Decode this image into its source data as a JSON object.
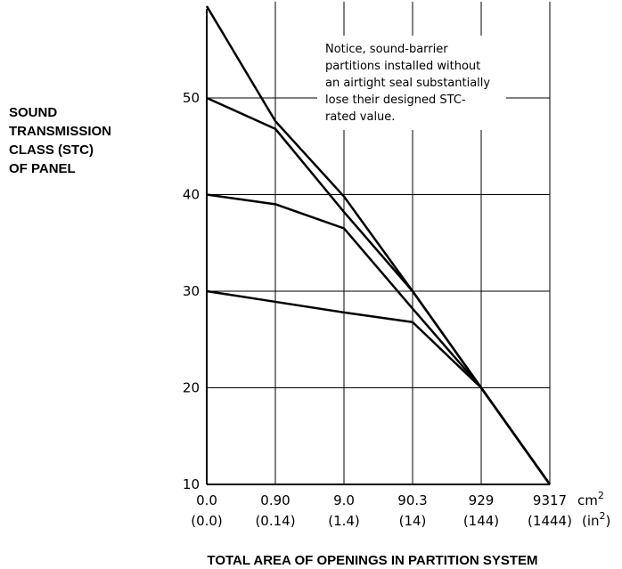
{
  "chart_data": {
    "type": "line",
    "ylabel_lines": [
      "SOUND",
      "TRANSMISSION",
      "CLASS (STC)",
      "OF PANEL"
    ],
    "xlabel": "TOTAL AREA OF OPENINGS IN PARTITION SYSTEM",
    "x_categories": [
      {
        "cm2": "0.0",
        "in2": "(0.0)"
      },
      {
        "cm2": "0.90",
        "in2": "(0.14)"
      },
      {
        "cm2": "9.0",
        "in2": "(1.4)"
      },
      {
        "cm2": "90.3",
        "in2": "(14)"
      },
      {
        "cm2": "929",
        "in2": "(144)"
      },
      {
        "cm2": "9317",
        "in2": "(1444)"
      }
    ],
    "x_unit_cm": "cm",
    "x_unit_cm_sup": "2",
    "x_unit_in": "(in",
    "x_unit_in_sup": "2",
    "x_unit_in_close": ")",
    "y_ticks": [
      10,
      20,
      30,
      40,
      50
    ],
    "ylim": [
      10,
      59.5
    ],
    "grid": true,
    "series": [
      {
        "x": [
          0,
          1,
          2,
          3,
          4,
          5
        ],
        "y": [
          59.5,
          47.6,
          39.8,
          30,
          20,
          10
        ]
      },
      {
        "x": [
          0,
          1,
          2,
          3,
          4,
          5
        ],
        "y": [
          50,
          46.8,
          38.2,
          30,
          20,
          10
        ]
      },
      {
        "x": [
          0,
          1,
          2,
          3,
          4,
          5
        ],
        "y": [
          40,
          39,
          36.5,
          28.2,
          20,
          10
        ]
      },
      {
        "x": [
          0,
          1,
          2,
          3,
          4,
          5
        ],
        "y": [
          30,
          28.9,
          27.8,
          26.8,
          20,
          10
        ]
      }
    ],
    "annotation_lines": [
      "Notice, sound-barrier",
      "partitions installed without",
      "an airtight seal substantially",
      "lose their designed STC-",
      "rated value."
    ]
  }
}
